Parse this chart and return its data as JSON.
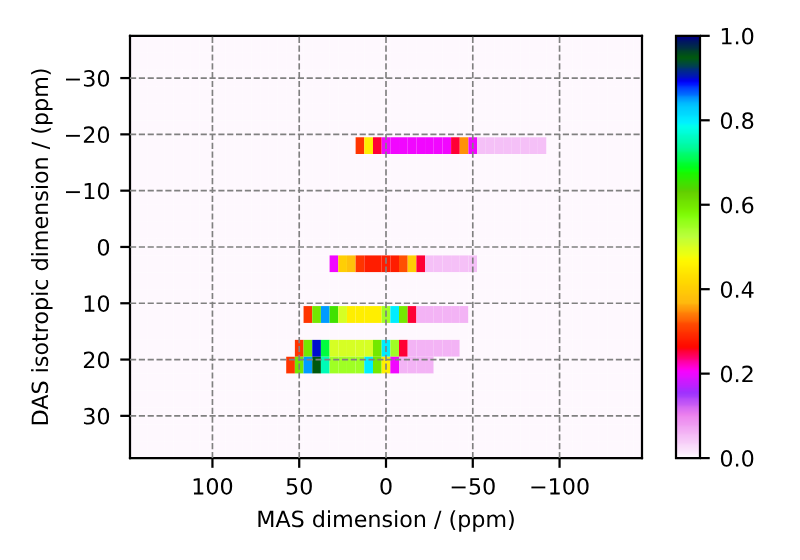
{
  "chart_data": {
    "type": "heatmap",
    "xlabel": "MAS dimension / (ppm)",
    "ylabel": "DAS isotropic dimension / (ppm)",
    "x": [
      145,
      140,
      135,
      130,
      125,
      120,
      115,
      110,
      105,
      100,
      95,
      90,
      85,
      80,
      75,
      70,
      65,
      60,
      55,
      50,
      45,
      40,
      35,
      30,
      25,
      20,
      15,
      10,
      5,
      0,
      -5,
      -10,
      -15,
      -20,
      -25,
      -30,
      -35,
      -40,
      -45,
      -50,
      -55,
      -60,
      -65,
      -70,
      -75,
      -80,
      -85,
      -90,
      -95,
      -100,
      -105,
      -110,
      -115,
      -120,
      -125,
      -130,
      -135,
      -140,
      -145
    ],
    "y": [
      -36,
      -33,
      -30,
      -27,
      -24,
      -21,
      -18,
      -15,
      -12,
      -9,
      -6,
      -3,
      0,
      3,
      6,
      9,
      12,
      15,
      18,
      21,
      24,
      27,
      30,
      33,
      36
    ],
    "xlim": [
      147.5,
      -147.5
    ],
    "ylim": [
      37.5,
      -37.5
    ],
    "xticks": [
      100,
      50,
      0,
      {
        "value": -50,
        "label": "−50"
      },
      {
        "value": -100,
        "label": "−100"
      }
    ],
    "yticks": [
      {
        "value": -30,
        "label": "−30"
      },
      {
        "value": -20,
        "label": "−20"
      },
      {
        "value": -10,
        "label": "−10"
      },
      0,
      10,
      20,
      30
    ],
    "clim": [
      0,
      1
    ],
    "cticks": [
      {
        "value": 0,
        "label": "0.0"
      },
      {
        "value": 0.2,
        "label": "0.2"
      },
      {
        "value": 0.4,
        "label": "0.4"
      },
      {
        "value": 0.6,
        "label": "0.6"
      },
      {
        "value": 0.8,
        "label": "0.8"
      },
      {
        "value": 1,
        "label": "1.0"
      }
    ],
    "grid": true,
    "cells": [
      [
        0,
        0,
        0,
        0,
        0,
        0,
        0,
        0,
        0,
        0,
        0,
        0,
        0,
        0,
        0,
        0,
        0,
        0,
        0,
        0,
        0,
        0,
        0,
        0,
        0,
        0,
        0,
        0,
        0,
        0,
        0,
        0,
        0,
        0,
        0,
        0,
        0,
        0,
        0,
        0,
        0,
        0,
        0,
        0,
        0,
        0,
        0,
        0,
        0,
        0,
        0,
        0,
        0,
        0,
        0,
        0,
        0,
        0,
        0
      ],
      [
        0,
        0,
        0,
        0,
        0,
        0,
        0,
        0,
        0,
        0,
        0,
        0,
        0,
        0,
        0,
        0,
        0,
        0,
        0,
        0,
        0,
        0,
        0,
        0,
        0,
        0,
        0,
        0,
        0,
        0,
        0,
        0,
        0,
        0,
        0,
        0,
        0,
        0,
        0,
        0,
        0,
        0,
        0,
        0,
        0,
        0,
        0,
        0,
        0,
        0,
        0,
        0,
        0,
        0,
        0,
        0,
        0,
        0,
        0
      ],
      [
        0,
        0,
        0,
        0,
        0,
        0,
        0,
        0,
        0,
        0,
        0,
        0,
        0,
        0,
        0,
        0,
        0,
        0,
        0,
        0,
        0,
        0,
        0,
        0,
        0,
        0,
        0,
        0,
        0,
        0,
        0,
        0,
        0,
        0,
        0,
        0,
        0,
        0,
        0,
        0,
        0,
        0,
        0,
        0,
        0,
        0,
        0,
        0,
        0,
        0,
        0,
        0,
        0,
        0,
        0,
        0,
        0,
        0,
        0
      ],
      [
        0,
        0,
        0,
        0,
        0,
        0,
        0,
        0,
        0,
        0,
        0,
        0,
        0,
        0,
        0,
        0,
        0,
        0,
        0,
        0,
        0,
        0,
        0,
        0,
        0,
        0,
        0,
        0,
        0,
        0,
        0,
        0,
        0,
        0,
        0,
        0,
        0,
        0,
        0,
        0,
        0,
        0,
        0,
        0,
        0,
        0,
        0,
        0,
        0,
        0,
        0,
        0,
        0,
        0,
        0,
        0,
        0,
        0,
        0
      ],
      [
        0,
        0,
        0,
        0,
        0,
        0,
        0,
        0,
        0,
        0,
        0,
        0,
        0,
        0,
        0,
        0,
        0,
        0,
        0,
        0,
        0,
        0,
        0,
        0,
        0,
        0,
        0,
        0,
        0,
        0,
        0,
        0,
        0,
        0,
        0,
        0,
        0,
        0,
        0,
        0,
        0,
        0,
        0,
        0,
        0,
        0,
        0,
        0,
        0,
        0,
        0,
        0,
        0,
        0,
        0,
        0,
        0,
        0,
        0
      ],
      [
        0,
        0,
        0,
        0,
        0,
        0,
        0,
        0,
        0,
        0,
        0,
        0,
        0,
        0,
        0,
        0,
        0,
        0,
        0,
        0,
        0,
        0,
        0,
        0,
        0,
        0,
        0,
        0,
        0,
        0,
        0,
        0,
        0,
        0,
        0,
        0,
        0,
        0,
        0,
        0,
        0,
        0,
        0,
        0,
        0,
        0,
        0,
        0,
        0,
        0,
        0,
        0,
        0,
        0,
        0,
        0,
        0,
        0,
        0
      ],
      [
        0,
        0,
        0,
        0,
        0,
        0,
        0,
        0,
        0,
        0,
        0,
        0,
        0,
        0,
        0,
        0,
        0,
        0,
        0,
        0,
        0,
        0,
        0,
        0,
        0,
        0,
        0.3,
        0.45,
        0.25,
        0.2,
        0.2,
        0.2,
        0.2,
        0.2,
        0.2,
        0.2,
        0.2,
        0.25,
        0.35,
        0.2,
        0.05,
        0.05,
        0.05,
        0.05,
        0.05,
        0.05,
        0.05,
        0.05,
        0,
        0,
        0,
        0,
        0,
        0,
        0,
        0,
        0,
        0,
        0
      ],
      [
        0,
        0,
        0,
        0,
        0,
        0,
        0,
        0,
        0,
        0,
        0,
        0,
        0,
        0,
        0,
        0,
        0,
        0,
        0,
        0,
        0,
        0,
        0,
        0,
        0,
        0,
        0,
        0,
        0,
        0,
        0,
        0,
        0,
        0,
        0,
        0,
        0,
        0,
        0,
        0,
        0,
        0,
        0,
        0,
        0,
        0,
        0,
        0,
        0,
        0,
        0,
        0,
        0,
        0,
        0,
        0,
        0,
        0,
        0
      ],
      [
        0,
        0,
        0,
        0,
        0,
        0,
        0,
        0,
        0,
        0,
        0,
        0,
        0,
        0,
        0,
        0,
        0,
        0,
        0,
        0,
        0,
        0,
        0,
        0,
        0,
        0,
        0,
        0,
        0,
        0,
        0,
        0,
        0,
        0,
        0,
        0,
        0,
        0,
        0,
        0,
        0,
        0,
        0,
        0,
        0,
        0,
        0,
        0,
        0,
        0,
        0,
        0,
        0,
        0,
        0,
        0,
        0,
        0,
        0
      ],
      [
        0,
        0,
        0,
        0,
        0,
        0,
        0,
        0,
        0,
        0,
        0,
        0,
        0,
        0,
        0,
        0,
        0,
        0,
        0,
        0,
        0,
        0,
        0,
        0,
        0,
        0,
        0,
        0,
        0,
        0,
        0,
        0,
        0,
        0,
        0,
        0,
        0,
        0,
        0,
        0,
        0,
        0,
        0,
        0,
        0,
        0,
        0,
        0,
        0,
        0,
        0,
        0,
        0,
        0,
        0,
        0,
        0,
        0,
        0
      ],
      [
        0,
        0,
        0,
        0,
        0,
        0,
        0,
        0,
        0,
        0,
        0,
        0,
        0,
        0,
        0,
        0,
        0,
        0,
        0,
        0,
        0,
        0,
        0,
        0,
        0,
        0,
        0,
        0,
        0,
        0,
        0,
        0,
        0,
        0,
        0,
        0,
        0,
        0,
        0,
        0,
        0,
        0,
        0,
        0,
        0,
        0,
        0,
        0,
        0,
        0,
        0,
        0,
        0,
        0,
        0,
        0,
        0,
        0,
        0
      ],
      [
        0,
        0,
        0,
        0,
        0,
        0,
        0,
        0,
        0,
        0,
        0,
        0,
        0,
        0,
        0,
        0,
        0,
        0,
        0,
        0,
        0,
        0,
        0,
        0,
        0,
        0,
        0,
        0,
        0,
        0,
        0,
        0,
        0,
        0,
        0,
        0,
        0,
        0,
        0,
        0,
        0,
        0,
        0,
        0,
        0,
        0,
        0,
        0,
        0,
        0,
        0,
        0,
        0,
        0,
        0,
        0,
        0,
        0,
        0
      ],
      [
        0,
        0,
        0,
        0,
        0,
        0,
        0,
        0,
        0,
        0,
        0,
        0,
        0,
        0,
        0,
        0,
        0,
        0,
        0,
        0,
        0,
        0,
        0,
        0,
        0,
        0,
        0,
        0,
        0,
        0,
        0,
        0,
        0,
        0,
        0,
        0,
        0,
        0,
        0,
        0,
        0,
        0,
        0,
        0,
        0,
        0,
        0,
        0,
        0,
        0,
        0,
        0,
        0,
        0,
        0,
        0,
        0,
        0,
        0
      ],
      [
        0,
        0,
        0,
        0,
        0,
        0,
        0,
        0,
        0,
        0,
        0,
        0,
        0,
        0,
        0,
        0,
        0,
        0,
        0,
        0,
        0,
        0,
        0,
        0.2,
        0.4,
        0.38,
        0.3,
        0.28,
        0.28,
        0.28,
        0.28,
        0.32,
        0.4,
        0.25,
        0.05,
        0.05,
        0.05,
        0.05,
        0.05,
        0.05,
        0,
        0,
        0,
        0,
        0,
        0,
        0,
        0,
        0,
        0,
        0,
        0,
        0,
        0,
        0,
        0,
        0,
        0,
        0
      ],
      [
        0,
        0,
        0,
        0,
        0,
        0,
        0,
        0,
        0,
        0,
        0,
        0,
        0,
        0,
        0,
        0,
        0,
        0,
        0,
        0,
        0,
        0,
        0,
        0,
        0,
        0,
        0,
        0,
        0,
        0,
        0,
        0,
        0,
        0,
        0,
        0,
        0,
        0,
        0,
        0,
        0,
        0,
        0,
        0,
        0,
        0,
        0,
        0,
        0,
        0,
        0,
        0,
        0,
        0,
        0,
        0,
        0,
        0,
        0
      ],
      [
        0,
        0,
        0,
        0,
        0,
        0,
        0,
        0,
        0,
        0,
        0,
        0,
        0,
        0,
        0,
        0,
        0,
        0,
        0,
        0,
        0,
        0,
        0,
        0,
        0,
        0,
        0,
        0,
        0,
        0,
        0,
        0,
        0,
        0,
        0,
        0,
        0,
        0,
        0,
        0,
        0,
        0,
        0,
        0,
        0,
        0,
        0,
        0,
        0,
        0,
        0,
        0,
        0,
        0,
        0,
        0,
        0,
        0,
        0
      ],
      [
        0,
        0,
        0,
        0,
        0,
        0,
        0,
        0,
        0,
        0,
        0,
        0,
        0,
        0,
        0,
        0,
        0,
        0,
        0,
        0,
        0.3,
        0.6,
        0.85,
        0.65,
        0.5,
        0.45,
        0.45,
        0.45,
        0.45,
        0.55,
        0.8,
        0.6,
        0.25,
        0.06,
        0.06,
        0.06,
        0.06,
        0.06,
        0.06,
        0,
        0,
        0,
        0,
        0,
        0,
        0,
        0,
        0,
        0,
        0,
        0,
        0,
        0,
        0,
        0,
        0,
        0,
        0,
        0
      ],
      [
        0,
        0,
        0,
        0,
        0,
        0,
        0,
        0,
        0,
        0,
        0,
        0,
        0,
        0,
        0,
        0,
        0,
        0,
        0,
        0,
        0,
        0,
        0,
        0,
        0,
        0,
        0,
        0,
        0,
        0,
        0,
        0,
        0,
        0,
        0,
        0,
        0,
        0,
        0,
        0,
        0,
        0,
        0,
        0,
        0,
        0,
        0,
        0,
        0,
        0,
        0,
        0,
        0,
        0,
        0,
        0,
        0,
        0,
        0
      ],
      [
        0,
        0,
        0,
        0,
        0,
        0,
        0,
        0,
        0,
        0,
        0,
        0,
        0,
        0,
        0,
        0,
        0,
        0,
        0,
        0.3,
        0.6,
        0.9,
        0.7,
        0.5,
        0.5,
        0.5,
        0.5,
        0.5,
        0.6,
        0.8,
        0.55,
        0.25,
        0.06,
        0.06,
        0.06,
        0.06,
        0.06,
        0.06,
        0,
        0,
        0,
        0,
        0,
        0,
        0,
        0,
        0,
        0,
        0,
        0,
        0,
        0,
        0,
        0,
        0,
        0,
        0,
        0,
        0
      ],
      [
        0,
        0,
        0,
        0,
        0,
        0,
        0,
        0,
        0,
        0,
        0,
        0,
        0,
        0,
        0,
        0,
        0,
        0,
        0.3,
        0.6,
        0.85,
        0.95,
        0.75,
        0.55,
        0.55,
        0.55,
        0.55,
        0.8,
        0.6,
        0.45,
        0.2,
        0.06,
        0.06,
        0.06,
        0.06,
        0,
        0,
        0,
        0,
        0,
        0,
        0,
        0,
        0,
        0,
        0,
        0,
        0,
        0,
        0,
        0,
        0,
        0,
        0,
        0,
        0,
        0,
        0,
        0
      ],
      [
        0,
        0,
        0,
        0,
        0,
        0,
        0,
        0,
        0,
        0,
        0,
        0,
        0,
        0,
        0,
        0,
        0,
        0,
        0,
        0,
        0,
        0,
        0,
        0,
        0,
        0,
        0,
        0,
        0,
        0,
        0,
        0,
        0,
        0,
        0,
        0,
        0,
        0,
        0,
        0,
        0,
        0,
        0,
        0,
        0,
        0,
        0,
        0,
        0,
        0,
        0,
        0,
        0,
        0,
        0,
        0,
        0,
        0,
        0
      ],
      [
        0,
        0,
        0,
        0,
        0,
        0,
        0,
        0,
        0,
        0,
        0,
        0,
        0,
        0,
        0,
        0,
        0,
        0,
        0,
        0,
        0,
        0,
        0,
        0,
        0,
        0,
        0,
        0,
        0,
        0,
        0,
        0,
        0,
        0,
        0,
        0,
        0,
        0,
        0,
        0,
        0,
        0,
        0,
        0,
        0,
        0,
        0,
        0,
        0,
        0,
        0,
        0,
        0,
        0,
        0,
        0,
        0,
        0,
        0
      ],
      [
        0,
        0,
        0,
        0,
        0,
        0,
        0,
        0,
        0,
        0,
        0,
        0,
        0,
        0,
        0,
        0,
        0,
        0,
        0,
        0,
        0,
        0,
        0,
        0,
        0,
        0,
        0,
        0,
        0,
        0,
        0,
        0,
        0,
        0,
        0,
        0,
        0,
        0,
        0,
        0,
        0,
        0,
        0,
        0,
        0,
        0,
        0,
        0,
        0,
        0,
        0,
        0,
        0,
        0,
        0,
        0,
        0,
        0,
        0
      ],
      [
        0,
        0,
        0,
        0,
        0,
        0,
        0,
        0,
        0,
        0,
        0,
        0,
        0,
        0,
        0,
        0,
        0,
        0,
        0,
        0,
        0,
        0,
        0,
        0,
        0,
        0,
        0,
        0,
        0,
        0,
        0,
        0,
        0,
        0,
        0,
        0,
        0,
        0,
        0,
        0,
        0,
        0,
        0,
        0,
        0,
        0,
        0,
        0,
        0,
        0,
        0,
        0,
        0,
        0,
        0,
        0,
        0,
        0,
        0
      ],
      [
        0,
        0,
        0,
        0,
        0,
        0,
        0,
        0,
        0,
        0,
        0,
        0,
        0,
        0,
        0,
        0,
        0,
        0,
        0,
        0,
        0,
        0,
        0,
        0,
        0,
        0,
        0,
        0,
        0,
        0,
        0,
        0,
        0,
        0,
        0,
        0,
        0,
        0,
        0,
        0,
        0,
        0,
        0,
        0,
        0,
        0,
        0,
        0,
        0,
        0,
        0,
        0,
        0,
        0,
        0,
        0,
        0,
        0,
        0
      ]
    ]
  }
}
